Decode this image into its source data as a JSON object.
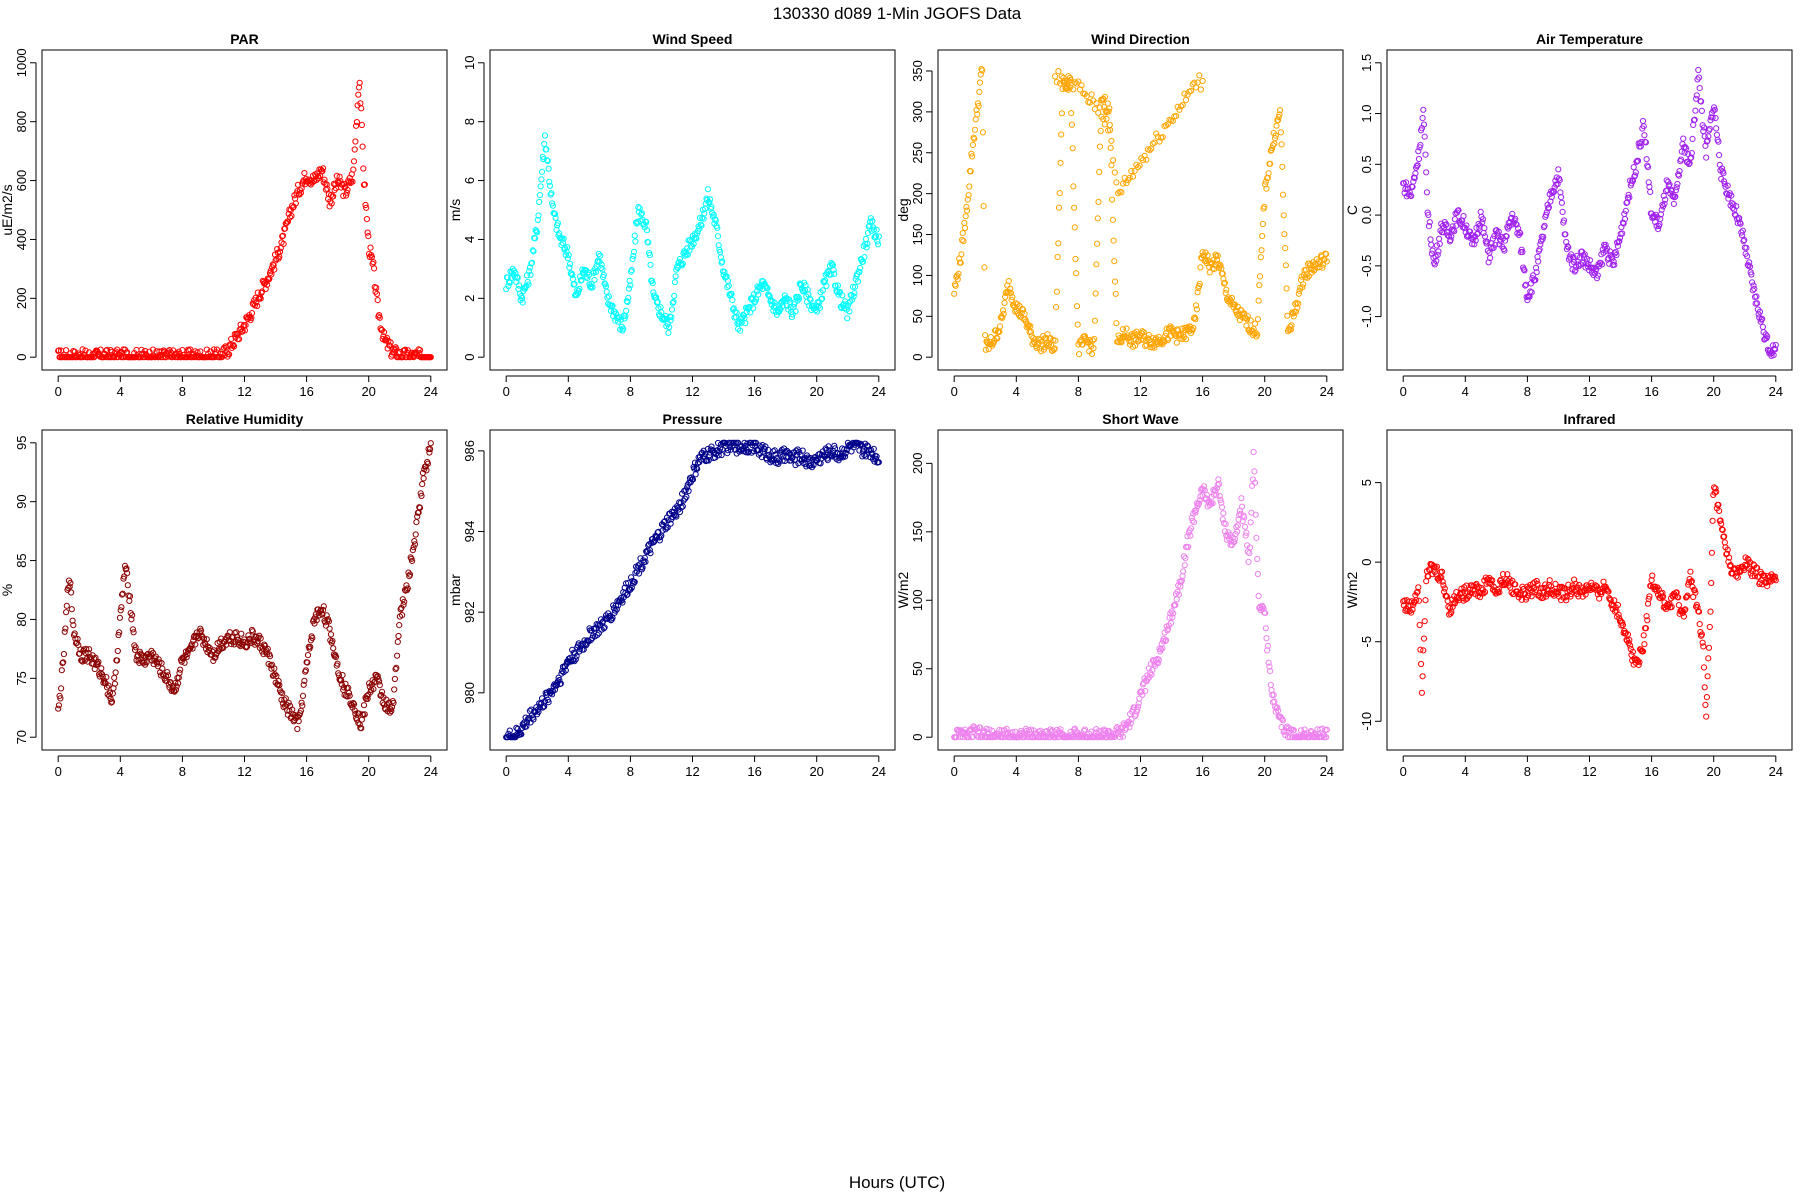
{
  "figure": {
    "title": "130330   d089   1-Min  JGOFS Data",
    "xlabel": "Hours (UTC)"
  },
  "chart_data": [
    {
      "type": "scatter",
      "title": "PAR",
      "ylabel": "uE/m2/s",
      "xlim": [
        0,
        24
      ],
      "xticks": [
        0,
        4,
        8,
        12,
        16,
        20,
        24
      ],
      "ylim": [
        0,
        1000
      ],
      "yticks": [
        0,
        200,
        400,
        600,
        800,
        1000
      ],
      "color": "#ff0000",
      "series": [
        {
          "x": [
            0,
            10.5,
            11,
            11.5,
            12,
            12.5,
            13,
            13.5,
            14,
            14.5,
            15,
            15.5,
            16,
            16.5,
            17,
            17.5,
            18,
            18.5,
            19,
            19.4,
            19.7,
            20,
            20.3,
            20.6,
            21,
            21.5,
            22,
            22.5,
            23,
            24
          ],
          "y": [
            2,
            2,
            30,
            70,
            110,
            160,
            220,
            270,
            330,
            400,
            500,
            570,
            620,
            600,
            640,
            530,
            600,
            560,
            620,
            960,
            600,
            380,
            300,
            160,
            60,
            20,
            5,
            2,
            2,
            2
          ]
        }
      ]
    },
    {
      "type": "scatter",
      "title": "Wind Speed",
      "ylabel": "m/s",
      "xlim": [
        0,
        24
      ],
      "xticks": [
        0,
        4,
        8,
        12,
        16,
        20,
        24
      ],
      "ylim": [
        0,
        10
      ],
      "yticks": [
        0,
        2,
        4,
        6,
        8,
        10
      ],
      "color": "#00ffff",
      "series": [
        {
          "x": [
            0,
            0.5,
            1,
            1.5,
            2,
            2.5,
            3,
            3.5,
            4,
            4.5,
            5,
            5.5,
            6,
            6.5,
            7,
            7.5,
            8,
            8.5,
            9,
            9.5,
            10,
            10.5,
            11,
            11.5,
            12,
            12.5,
            13,
            13.5,
            14,
            14.5,
            15,
            15.5,
            16,
            16.5,
            17,
            17.5,
            18,
            18.5,
            19,
            19.5,
            20,
            20.5,
            21,
            21.5,
            22,
            22.5,
            23,
            23.5,
            24
          ],
          "y": [
            2.5,
            3.0,
            2.0,
            2.8,
            4.5,
            7.5,
            5.0,
            4.0,
            3.5,
            2.0,
            3.0,
            2.5,
            3.5,
            2.0,
            1.5,
            1.0,
            2.5,
            5.0,
            4.5,
            2.0,
            1.5,
            1.0,
            3.0,
            3.5,
            4.0,
            4.5,
            5.5,
            4.5,
            3.0,
            2.0,
            1.0,
            1.5,
            2.0,
            2.5,
            2.0,
            1.5,
            2.0,
            1.5,
            2.5,
            2.0,
            1.5,
            2.5,
            3.0,
            2.0,
            1.5,
            2.5,
            3.5,
            4.5,
            4.0
          ]
        }
      ]
    },
    {
      "type": "scatter",
      "title": "Wind Direction",
      "ylabel": "deg",
      "xlim": [
        0,
        24
      ],
      "xticks": [
        0,
        4,
        8,
        12,
        16,
        20,
        24
      ],
      "ylim": [
        0,
        360
      ],
      "yticks": [
        0,
        50,
        100,
        150,
        200,
        250,
        300,
        350
      ],
      "color": "#ffa500",
      "series": [
        {
          "x": [
            0,
            0.4,
            0.8,
            1.2,
            1.6,
            1.8,
            2.0,
            2.5,
            3.0,
            3.5,
            4.0,
            4.5,
            5,
            5.5,
            6,
            6.5,
            7,
            7.5,
            8,
            8.5,
            9,
            9.5,
            10,
            10.5,
            11,
            11.5,
            12,
            12.5,
            13,
            13.5,
            14,
            14.5,
            15,
            15.5,
            16,
            16.5,
            17,
            17.5,
            18,
            18.5,
            19,
            19.5,
            20,
            20.5,
            21,
            21.5,
            22,
            22.5,
            23,
            23.5,
            24
          ],
          "y": [
            80,
            120,
            180,
            260,
            320,
            355,
            10,
            20,
            40,
            90,
            60,
            50,
            25,
            15,
            20,
            10,
            340,
            330,
            10,
            20,
            10,
            320,
            300,
            15,
            30,
            20,
            25,
            20,
            20,
            25,
            30,
            25,
            30,
            40,
            130,
            110,
            120,
            80,
            60,
            50,
            40,
            30,
            200,
            260,
            300,
            30,
            60,
            100,
            110,
            115,
            120
          ]
        },
        {
          "x": [
            6.5,
            7.0,
            7.5,
            8.0,
            8.5,
            9.0,
            9.5,
            10.0,
            10.5,
            15.8,
            16.0
          ],
          "y": [
            345,
            340,
            335,
            330,
            320,
            310,
            300,
            280,
            200,
            340,
            330
          ]
        }
      ]
    },
    {
      "type": "scatter",
      "title": "Air Temperature",
      "ylabel": "C",
      "xlim": [
        0,
        24
      ],
      "xticks": [
        0,
        4,
        8,
        12,
        16,
        20,
        24
      ],
      "ylim": [
        -1.4,
        1.5
      ],
      "yticks": [
        -1.0,
        -0.5,
        0.0,
        0.5,
        1.0,
        1.5
      ],
      "color": "#a020f0",
      "series": [
        {
          "x": [
            0,
            0.5,
            1,
            1.3,
            1.6,
            2,
            2.5,
            3,
            3.5,
            4,
            4.5,
            5,
            5.5,
            6,
            6.5,
            7,
            7.5,
            8,
            8.5,
            9,
            9.5,
            10,
            10.5,
            11,
            11.5,
            12,
            12.5,
            13,
            13.5,
            14,
            14.5,
            15,
            15.5,
            16,
            16.5,
            17,
            17.5,
            18,
            18.5,
            19,
            19.5,
            20,
            20.5,
            21,
            21.5,
            22,
            22.5,
            23,
            23.5,
            24
          ],
          "y": [
            0.3,
            0.2,
            0.6,
            1.0,
            0.0,
            -0.5,
            -0.1,
            -0.2,
            0.0,
            -0.1,
            -0.3,
            0.0,
            -0.4,
            -0.2,
            -0.3,
            0.0,
            -0.2,
            -0.8,
            -0.6,
            -0.2,
            0.2,
            0.4,
            -0.3,
            -0.5,
            -0.4,
            -0.5,
            -0.6,
            -0.3,
            -0.5,
            -0.2,
            0.2,
            0.5,
            0.9,
            0.0,
            -0.1,
            0.3,
            0.1,
            0.7,
            0.5,
            1.4,
            0.6,
            1.1,
            0.4,
            0.2,
            0.0,
            -0.3,
            -0.7,
            -1.0,
            -1.3,
            -1.35
          ]
        }
      ]
    },
    {
      "type": "scatter",
      "title": "Relative Humidity",
      "ylabel": "%",
      "xlim": [
        0,
        24
      ],
      "xticks": [
        0,
        4,
        8,
        12,
        16,
        20,
        24
      ],
      "ylim": [
        70,
        95
      ],
      "yticks": [
        70,
        75,
        80,
        85,
        90,
        95
      ],
      "color": "#8b0000",
      "series": [
        {
          "x": [
            0,
            0.3,
            0.7,
            1.0,
            1.5,
            2,
            2.5,
            3,
            3.5,
            4,
            4.3,
            4.6,
            5,
            5.5,
            6,
            6.5,
            7,
            7.5,
            8,
            8.5,
            9,
            9.5,
            10,
            10.5,
            11,
            11.5,
            12,
            12.5,
            13,
            13.5,
            14,
            14.5,
            15,
            15.5,
            16,
            16.5,
            17,
            17.5,
            18,
            18.5,
            19,
            19.5,
            20,
            20.5,
            21,
            21.5,
            22,
            22.5,
            23,
            23.5,
            24
          ],
          "y": [
            72,
            76,
            84,
            79,
            77,
            77,
            76,
            75,
            73,
            80,
            84.5,
            82,
            77,
            76.5,
            77,
            76,
            75,
            74,
            76.5,
            77,
            79,
            78,
            77,
            78,
            78.5,
            78.5,
            78,
            78.5,
            78,
            77,
            75,
            73,
            72,
            71,
            76,
            80,
            81,
            79,
            76,
            74,
            73,
            71,
            74,
            75,
            73,
            72,
            80,
            83,
            87,
            92,
            94.8
          ]
        }
      ]
    },
    {
      "type": "scatter",
      "title": "Pressure",
      "ylabel": "mbar",
      "xlim": [
        0,
        24
      ],
      "xticks": [
        0,
        4,
        8,
        12,
        16,
        20,
        24
      ],
      "ylim": [
        978.9,
        986.2
      ],
      "yticks": [
        980,
        982,
        984,
        986
      ],
      "color": "#00008b",
      "series": [
        {
          "x": [
            0,
            0.5,
            1,
            1.5,
            2,
            2.5,
            3,
            3.5,
            4,
            4.5,
            5,
            5.5,
            6,
            6.5,
            7,
            7.5,
            8,
            8.5,
            9,
            9.5,
            10,
            10.5,
            11,
            11.5,
            12,
            12.5,
            13,
            13.5,
            14,
            14.5,
            15,
            15.5,
            16,
            16.5,
            17,
            17.5,
            18,
            18.5,
            19,
            19.5,
            20,
            20.5,
            21,
            21.5,
            22,
            22.5,
            23,
            23.5,
            24
          ],
          "y": [
            978.9,
            978.9,
            979.1,
            979.4,
            979.6,
            979.8,
            980.1,
            980.4,
            980.8,
            981.0,
            981.2,
            981.5,
            981.6,
            981.8,
            982.1,
            982.4,
            982.7,
            983.1,
            983.4,
            983.7,
            984.0,
            984.3,
            984.5,
            984.9,
            985.4,
            985.8,
            985.9,
            986.0,
            986.1,
            986.15,
            986.1,
            986.15,
            986.1,
            986.0,
            985.9,
            985.8,
            985.9,
            985.8,
            985.9,
            985.7,
            985.8,
            985.9,
            986.0,
            985.9,
            986.1,
            986.1,
            986.0,
            986.0,
            985.8
          ]
        }
      ]
    },
    {
      "type": "scatter",
      "title": "Short Wave",
      "ylabel": "W/m2",
      "xlim": [
        0,
        24
      ],
      "xticks": [
        0,
        4,
        8,
        12,
        16,
        20,
        24
      ],
      "ylim": [
        0,
        215
      ],
      "yticks": [
        0,
        50,
        100,
        150,
        200
      ],
      "color": "#ee82ee",
      "series": [
        {
          "x": [
            0,
            1,
            1.2,
            2,
            4,
            6,
            8,
            10,
            10.8,
            11.5,
            12,
            12.5,
            13,
            13.5,
            14,
            14.5,
            15,
            15.5,
            16,
            16.5,
            17,
            17.5,
            18,
            18.5,
            19,
            19.3,
            19.6,
            20,
            20.3,
            20.6,
            21,
            21.5,
            22,
            23,
            24
          ],
          "y": [
            1,
            1,
            3,
            1,
            1,
            1,
            1,
            1,
            3,
            15,
            30,
            45,
            55,
            70,
            90,
            110,
            140,
            165,
            180,
            170,
            185,
            150,
            140,
            170,
            130,
            210,
            100,
            90,
            50,
            25,
            10,
            3,
            1,
            1,
            1
          ]
        }
      ]
    },
    {
      "type": "scatter",
      "title": "Infrared",
      "ylabel": "W/m2",
      "xlim": [
        0,
        24
      ],
      "xticks": [
        0,
        4,
        8,
        12,
        16,
        20,
        24
      ],
      "ylim": [
        -11,
        7.5
      ],
      "yticks": [
        -10,
        -5,
        0,
        5
      ],
      "color": "#ff0000",
      "series": [
        {
          "x": [
            0,
            0.5,
            1,
            1.2,
            1.5,
            2,
            2.5,
            3,
            3.5,
            4,
            4.5,
            5,
            5.5,
            6,
            6.5,
            7,
            7.5,
            8,
            8.5,
            9,
            9.5,
            10,
            10.5,
            11,
            11.5,
            12,
            12.5,
            13,
            13.5,
            14,
            14.5,
            15,
            15.5,
            16,
            16.5,
            17,
            17.5,
            18,
            18.5,
            19,
            19.3,
            19.5,
            19.8,
            20,
            20.5,
            21,
            21.5,
            22,
            22.5,
            23,
            23.5,
            24
          ],
          "y": [
            -2.5,
            -3,
            -1.5,
            -8,
            -0.5,
            -0.5,
            -1,
            -3,
            -2,
            -2,
            -1.5,
            -2,
            -1,
            -2,
            -1,
            -1.5,
            -2,
            -2,
            -1.5,
            -2,
            -1.5,
            -2,
            -2,
            -1.5,
            -2,
            -1.5,
            -2,
            -1.5,
            -2.5,
            -3.5,
            -5,
            -6.5,
            -5,
            -1,
            -2,
            -3,
            -2,
            -3.5,
            -1,
            -3,
            -5,
            -10,
            -3,
            5,
            2,
            0,
            -1,
            0,
            -0.5,
            -1,
            -1.2,
            -1.2
          ]
        }
      ]
    }
  ]
}
